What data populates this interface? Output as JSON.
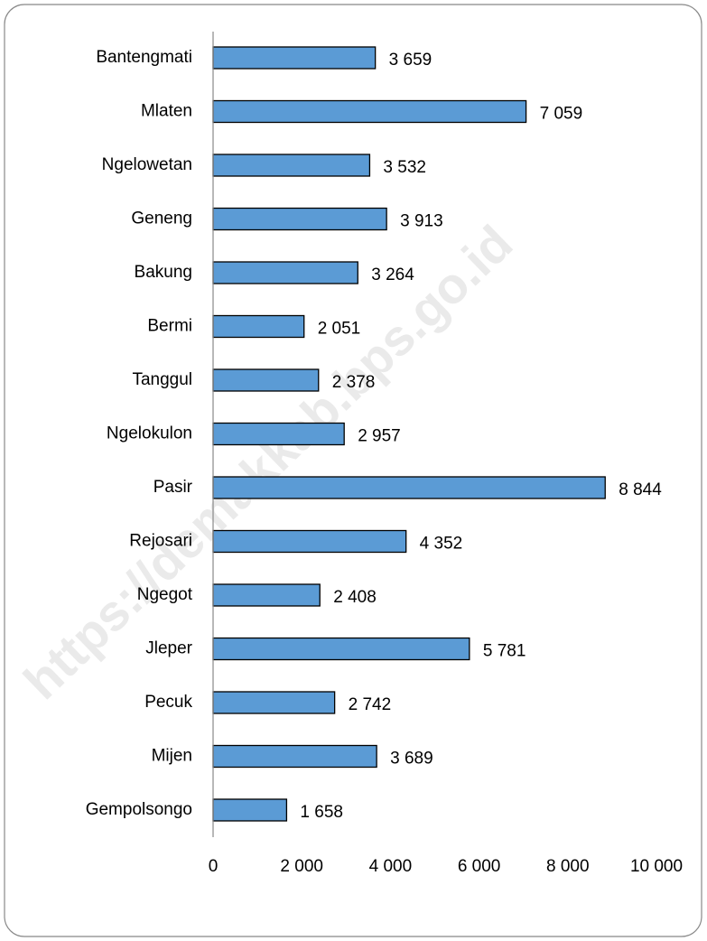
{
  "chart_data": {
    "type": "bar",
    "orientation": "horizontal",
    "watermark": "https://demakkab.bps.go.id",
    "categories": [
      "Bantengmati",
      "Mlaten",
      "Ngelowetan",
      "Geneng",
      "Bakung",
      "Bermi",
      "Tanggul",
      "Ngelokulon",
      "Pasir",
      "Rejosari",
      "Ngegot",
      "Jleper",
      "Pecuk",
      "Mijen",
      "Gempolsongo"
    ],
    "values": [
      3659,
      7059,
      3532,
      3913,
      3264,
      2051,
      2378,
      2957,
      8844,
      4352,
      2408,
      5781,
      2742,
      3689,
      1658
    ],
    "value_labels": [
      "3 659",
      "7 059",
      "3 532",
      "3 913",
      "3 264",
      "2 051",
      "2 378",
      "2 957",
      "8 844",
      "4 352",
      "2 408",
      "5 781",
      "2 742",
      "3 689",
      "1 658"
    ],
    "color": "#5b9bd5",
    "xlim": [
      0,
      10000
    ],
    "xticks": [
      0,
      {
        "value": 2000,
        "label": "2 000"
      },
      {
        "value": 4000,
        "label": "4 000"
      },
      {
        "value": 6000,
        "label": "6 000"
      },
      {
        "value": 8000,
        "label": "8 000"
      },
      {
        "value": 10000,
        "label": "10 000"
      }
    ],
    "grid": false
  }
}
